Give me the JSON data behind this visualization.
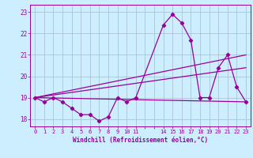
{
  "xlabel": "Windchill (Refroidissement éolien,°C)",
  "x_hours": [
    0,
    1,
    2,
    3,
    4,
    5,
    6,
    7,
    8,
    9,
    10,
    11,
    14,
    15,
    16,
    17,
    18,
    19,
    20,
    21,
    22,
    23
  ],
  "line1_y": [
    19.0,
    18.8,
    19.0,
    18.8,
    18.5,
    18.2,
    18.2,
    17.9,
    18.1,
    19.0,
    18.8,
    19.0,
    22.4,
    22.9,
    22.5,
    21.7,
    19.0,
    19.0,
    20.4,
    21.0,
    19.5,
    18.8
  ],
  "line2_x": [
    0,
    23
  ],
  "line2_y": [
    19.0,
    21.0
  ],
  "line3_x": [
    0,
    23
  ],
  "line3_y": [
    19.0,
    20.4
  ],
  "line4_x": [
    0,
    23
  ],
  "line4_y": [
    19.0,
    18.8
  ],
  "color": "#990099",
  "bg_color": "#cceeff",
  "grid_color": "#aabbcc",
  "ylim": [
    17.65,
    23.35
  ],
  "xlim": [
    -0.5,
    23.5
  ],
  "yticks": [
    18,
    19,
    20,
    21,
    22,
    23
  ],
  "xtick_positions": [
    0,
    1,
    2,
    3,
    4,
    5,
    6,
    7,
    8,
    9,
    10,
    11,
    12,
    13,
    14,
    15,
    16,
    17,
    18,
    19,
    20,
    21,
    22,
    23
  ],
  "xtick_labels": [
    "0",
    "1",
    "2",
    "3",
    "4",
    "5",
    "6",
    "7",
    "8",
    "9",
    "10",
    "11",
    "",
    "",
    "14",
    "15",
    "16",
    "17",
    "18",
    "19",
    "20",
    "21",
    "22",
    "23"
  ]
}
